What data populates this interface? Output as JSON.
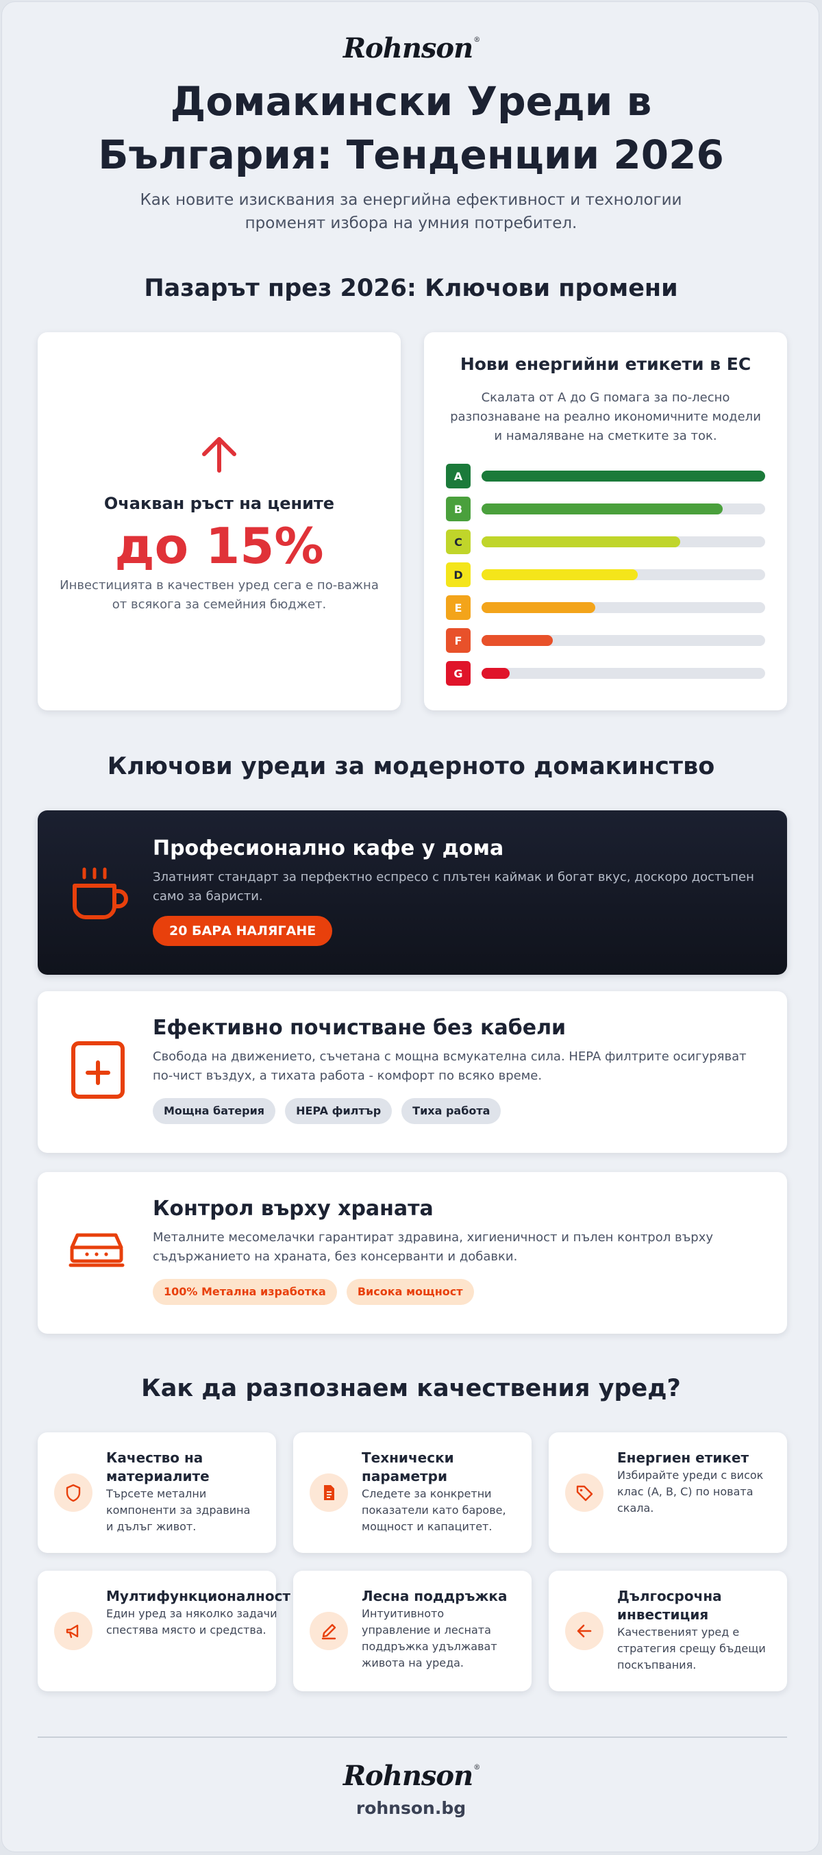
{
  "brand": {
    "name": "Rohnson",
    "mark": "®",
    "website": "rohnson.bg"
  },
  "hero": {
    "title_line1": "Домакински Уреди в",
    "title_line2": "България: Тенденции 2026",
    "subtitle_line1": "Как новите изисквания за енергийна ефективност и технологии",
    "subtitle_line2": "променят избора на умния потребител."
  },
  "market": {
    "heading": "Пазарът през 2026: Ключови промени",
    "price_card": {
      "icon": "arrow-up-icon",
      "label": "Очакван ръст на цените",
      "value": "до 15%",
      "desc_line1": "Инвестицията в качествен уред сега е по-важна",
      "desc_line2": "от всякога за семейния бюджет."
    },
    "energy_card": {
      "title": "Нови енергийни етикети в ЕС",
      "desc_line1": "Скалата от A до G помага за по-лесно",
      "desc_line2": "разпознаване на реално икономичните модели",
      "desc_line3": "и намаляване на сметките за ток.",
      "classes": [
        {
          "label": "A",
          "color": "#1b7a3a",
          "level": 1.0
        },
        {
          "label": "B",
          "color": "#4aa03c",
          "level": 0.85
        },
        {
          "label": "C",
          "color": "#c0d52a",
          "level": 0.7
        },
        {
          "label": "D",
          "color": "#f4e51a",
          "level": 0.55
        },
        {
          "label": "E",
          "color": "#f3a41a",
          "level": 0.4
        },
        {
          "label": "F",
          "color": "#e8512a",
          "level": 0.25
        },
        {
          "label": "G",
          "color": "#e0142a",
          "level": 0.1
        }
      ]
    }
  },
  "appliances": {
    "heading": "Ключови уреди за модерното домакинство",
    "items": [
      {
        "icon": "coffee-cup-icon",
        "title": "Професионално кафе у дома",
        "desc_line1": "Златният стандарт за перфектно еспресо с плътен каймак и богат вкус, доскоро достъпен",
        "desc_line2": "само за баристи.",
        "tags": [
          "20 БАРА НАЛЯГАНЕ"
        ]
      },
      {
        "icon": "plus-square-icon",
        "title": "Ефективно почистване без кабели",
        "desc_line1": "Свобода на движението, съчетана с мощна всмукателна сила. HEPA филтрите осигуряват",
        "desc_line2": "по-чист въздух, а тихата работа - комфорт по всяко време.",
        "tags": [
          "Мощна батерия",
          "HEPA филтър",
          "Тиха работа"
        ]
      },
      {
        "icon": "meat-grinder-icon",
        "title": "Контрол върху храната",
        "desc_line1": "Металните месомелачки гарантират здравина, хигиеничност и пълен контрол върху",
        "desc_line2": "съдържанието на храната, без консерванти и добавки.",
        "tags": [
          "100% Метална изработка",
          "Висока мощност"
        ]
      }
    ]
  },
  "quality": {
    "heading": "Как да разпознаем качествения уред?",
    "tips": [
      {
        "icon": "shield-icon",
        "title_line1": "Качество на",
        "title_line2": "материалите",
        "desc": [
          "Търсете метални",
          "компоненти за здравина",
          "и дълъг живот."
        ]
      },
      {
        "icon": "document-icon",
        "title_line1": "Технически",
        "title_line2": "параметри",
        "desc": [
          "Следете за конкретни",
          "показатели като барове,",
          "мощност и капацитет."
        ]
      },
      {
        "icon": "tag-icon",
        "title_line1": "Енергиен етикет",
        "title_line2": "",
        "desc": [
          "Избирайте уреди с висок",
          "клас (A, B, C) по новата",
          "скала."
        ]
      },
      {
        "icon": "megaphone-icon",
        "title_line1": "Мултифункционалност",
        "title_line2": "",
        "desc": [
          "Един уред за няколко задачи",
          "спестява място и средства."
        ]
      },
      {
        "icon": "pencil-icon",
        "title_line1": "Лесна поддръжка",
        "title_line2": "",
        "desc": [
          "Интуитивното",
          "управление и лесната",
          "поддръжка удължават",
          "живота на уреда."
        ]
      },
      {
        "icon": "arrow-left-icon",
        "title_line1": "Дългосрочна",
        "title_line2": "инвестиция",
        "desc": [
          "Качественият уред е",
          "стратегия срещу бъдещи",
          "поскъпвания."
        ]
      }
    ]
  },
  "colors": {
    "accent_orange": "#e8400c",
    "accent_red": "#e03238",
    "dark_card": "#141824"
  }
}
